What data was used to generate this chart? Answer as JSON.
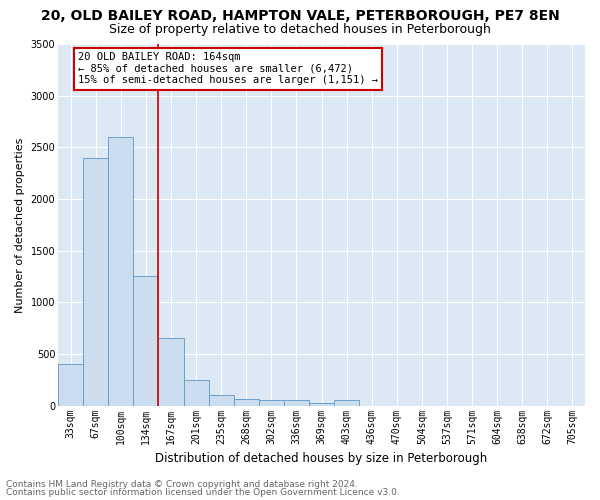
{
  "title1": "20, OLD BAILEY ROAD, HAMPTON VALE, PETERBOROUGH, PE7 8EN",
  "title2": "Size of property relative to detached houses in Peterborough",
  "xlabel": "Distribution of detached houses by size in Peterborough",
  "ylabel": "Number of detached properties",
  "footnote1": "Contains HM Land Registry data © Crown copyright and database right 2024.",
  "footnote2": "Contains public sector information licensed under the Open Government Licence v3.0.",
  "annotation_line1": "20 OLD BAILEY ROAD: 164sqm",
  "annotation_line2": "← 85% of detached houses are smaller (6,472)",
  "annotation_line3": "15% of semi-detached houses are larger (1,151) →",
  "bar_values": [
    400,
    2400,
    2600,
    1250,
    650,
    250,
    100,
    60,
    50,
    50,
    30,
    50,
    0,
    0,
    0,
    0,
    0,
    0,
    0,
    0,
    0
  ],
  "categories": [
    "33sqm",
    "67sqm",
    "100sqm",
    "134sqm",
    "167sqm",
    "201sqm",
    "235sqm",
    "268sqm",
    "302sqm",
    "336sqm",
    "369sqm",
    "403sqm",
    "436sqm",
    "470sqm",
    "504sqm",
    "537sqm",
    "571sqm",
    "604sqm",
    "638sqm",
    "672sqm",
    "705sqm"
  ],
  "bar_color": "#ccddf0",
  "bar_edge_color": "#6aa0cc",
  "red_line_x": 3.5,
  "ylim": [
    0,
    3500
  ],
  "yticks": [
    0,
    500,
    1000,
    1500,
    2000,
    2500,
    3000,
    3500
  ],
  "background_color": "#dce8f4",
  "grid_color": "#c8d8ea",
  "annotation_box_facecolor": "white",
  "annotation_box_edgecolor": "#cc0000",
  "title1_fontsize": 10,
  "title2_fontsize": 9,
  "tick_fontsize": 7,
  "ylabel_fontsize": 8,
  "xlabel_fontsize": 8.5,
  "annotation_fontsize": 7.5,
  "footnote_fontsize": 6.5
}
